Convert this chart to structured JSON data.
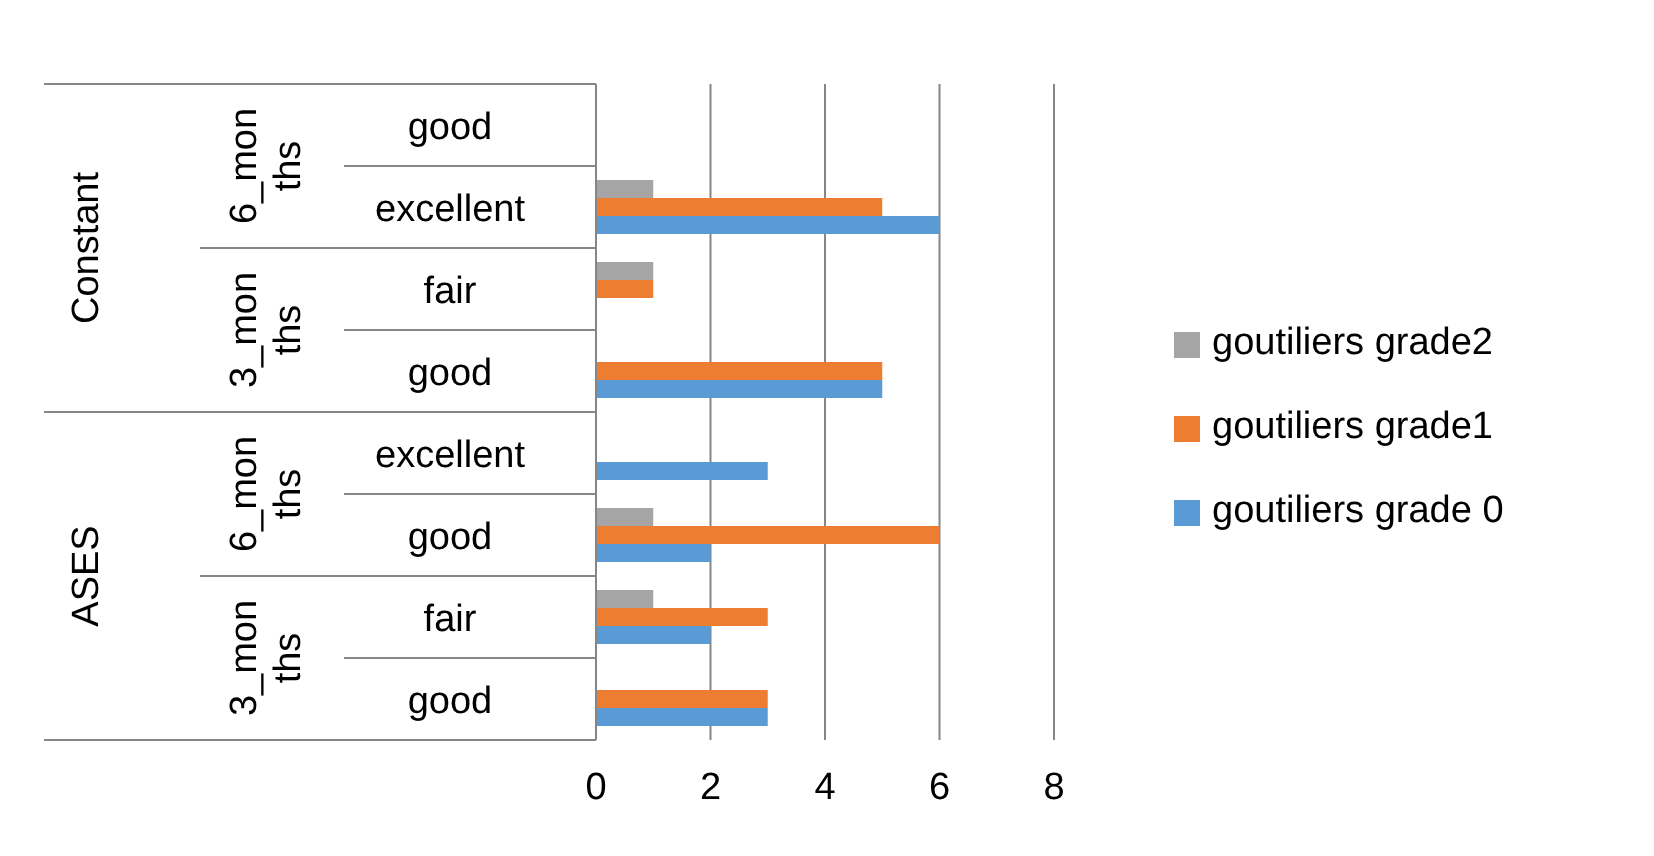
{
  "chart_data": {
    "type": "bar",
    "orientation": "horizontal",
    "categories": [
      "good",
      "excellent",
      "fair",
      "good",
      "excellent",
      "good",
      "fair",
      "good"
    ],
    "annotations": [
      "Constant",
      "ASES",
      "6_months",
      "3_months",
      "6_months",
      "3_months"
    ],
    "series": [
      {
        "name": "goutiliers grade2",
        "color": "#a5a5a5",
        "values": [
          0,
          1,
          1,
          0,
          0,
          1,
          1,
          0
        ]
      },
      {
        "name": "goutiliers grade1",
        "color": "#ed7d31",
        "values": [
          0,
          5,
          1,
          5,
          0,
          6,
          3,
          3
        ]
      },
      {
        "name": "goutiliers grade 0",
        "color": "#5b9bd5",
        "values": [
          0,
          6,
          0,
          5,
          3,
          2,
          2,
          3
        ]
      }
    ],
    "xlim": [
      0,
      8
    ],
    "xticks": [
      0,
      2,
      4,
      6,
      8
    ],
    "grid": "x",
    "legend": "right"
  }
}
